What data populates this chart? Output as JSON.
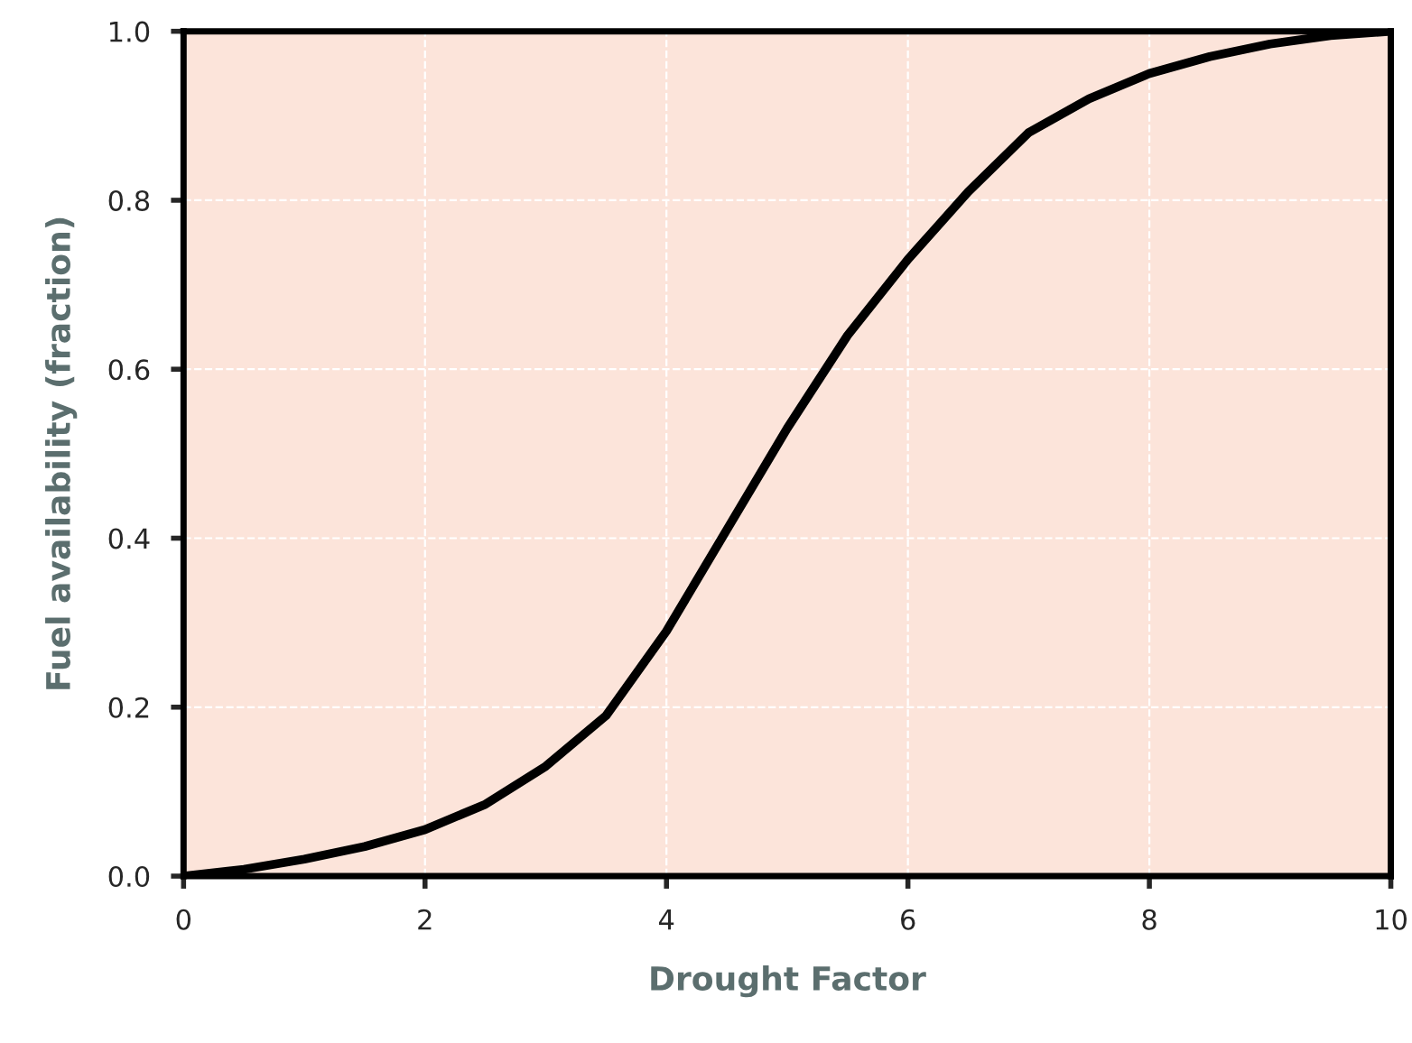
{
  "chart_data": {
    "type": "line",
    "xlabel": "Drought Factor",
    "ylabel": "Fuel availability (fraction)",
    "x": [
      0,
      0.5,
      1,
      1.5,
      2,
      2.5,
      3,
      3.5,
      4,
      4.5,
      5,
      5.5,
      6,
      6.5,
      7,
      7.5,
      8,
      8.5,
      9,
      9.5,
      10
    ],
    "series": [
      {
        "color": "#000000",
        "values": [
          0.0,
          0.008,
          0.02,
          0.035,
          0.055,
          0.085,
          0.13,
          0.19,
          0.29,
          0.41,
          0.53,
          0.64,
          0.73,
          0.81,
          0.88,
          0.92,
          0.95,
          0.97,
          0.985,
          0.995,
          1.0
        ]
      }
    ],
    "xlim": [
      0,
      10
    ],
    "ylim": [
      0,
      1
    ],
    "xticks": [
      0,
      2,
      4,
      6,
      8,
      10
    ],
    "yticks": [
      {
        "value": 0,
        "label": "0.0"
      },
      {
        "value": 0.2,
        "label": "0.2"
      },
      {
        "value": 0.4,
        "label": "0.4"
      },
      {
        "value": 0.6,
        "label": "0.6"
      },
      {
        "value": 0.8,
        "label": "0.8"
      },
      {
        "value": 1,
        "label": "1.0"
      }
    ],
    "grid": true,
    "legend": false,
    "marker": "none",
    "line_style": "solid"
  }
}
